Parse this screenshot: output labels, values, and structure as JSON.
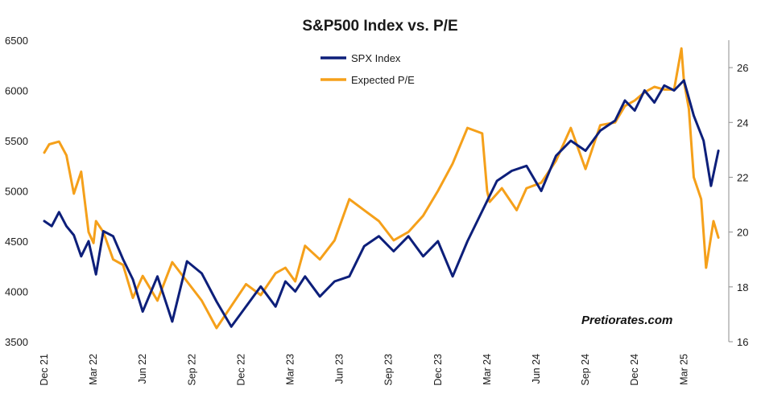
{
  "chart_data": {
    "type": "line",
    "title": "S&P500 Index vs. P/E",
    "watermark": "Pretiorates.com",
    "legend": {
      "position": "top-center",
      "entries": [
        "SPX Index",
        "Expected P/E"
      ]
    },
    "x_tick_labels": [
      "Dec 21",
      "Mar 22",
      "Jun 22",
      "Sep 22",
      "Dec 22",
      "Mar 23",
      "Jun 23",
      "Sep 23",
      "Dec 23",
      "Mar 24",
      "Jun 24",
      "Sep 24",
      "Dec 24",
      "Mar 25"
    ],
    "y_left": {
      "ylim": [
        3500,
        6500
      ],
      "ticks": [
        "3500",
        "4000",
        "4500",
        "5000",
        "5500",
        "6000",
        "6500"
      ]
    },
    "y_right": {
      "ylim": [
        16,
        27
      ],
      "ticks": [
        "16",
        "18",
        "20",
        "22",
        "24",
        "26"
      ]
    },
    "grid": false,
    "colors": {
      "spx": "#0d1f7a",
      "pe": "#f5a01a"
    },
    "series": [
      {
        "name": "SPX Index",
        "axis": "left",
        "x": [
          0,
          0.15,
          0.3,
          0.45,
          0.6,
          0.75,
          0.9,
          1.05,
          1.2,
          1.4,
          1.6,
          1.8,
          2.0,
          2.3,
          2.6,
          2.9,
          3.2,
          3.5,
          3.8,
          4.1,
          4.4,
          4.7,
          4.9,
          5.1,
          5.3,
          5.6,
          5.9,
          6.2,
          6.5,
          6.8,
          7.1,
          7.4,
          7.7,
          8.0,
          8.3,
          8.6,
          8.9,
          9.2,
          9.5,
          9.8,
          10.1,
          10.4,
          10.7,
          11.0,
          11.3,
          11.6,
          11.8,
          12.0,
          12.2,
          12.4,
          12.6,
          12.8,
          13.0,
          13.2,
          13.4,
          13.55,
          13.7
        ],
        "y": [
          4700,
          4650,
          4790,
          4650,
          4560,
          4350,
          4500,
          4170,
          4600,
          4550,
          4320,
          4120,
          3800,
          4150,
          3700,
          4300,
          4180,
          3900,
          3650,
          3850,
          4050,
          3850,
          4100,
          4000,
          4150,
          3950,
          4100,
          4150,
          4450,
          4550,
          4400,
          4550,
          4350,
          4500,
          4150,
          4500,
          4800,
          5100,
          5200,
          5250,
          5000,
          5350,
          5500,
          5400,
          5600,
          5700,
          5900,
          5800,
          6000,
          5880,
          6050,
          6000,
          6100,
          5750,
          5500,
          5050,
          5400
        ]
      },
      {
        "name": "Expected P/E",
        "axis": "right",
        "x": [
          0,
          0.1,
          0.3,
          0.45,
          0.6,
          0.75,
          0.9,
          1.0,
          1.05,
          1.2,
          1.4,
          1.6,
          1.8,
          2.0,
          2.3,
          2.6,
          2.9,
          3.2,
          3.5,
          3.8,
          4.1,
          4.4,
          4.7,
          4.9,
          5.1,
          5.3,
          5.6,
          5.9,
          6.2,
          6.5,
          6.8,
          7.1,
          7.4,
          7.7,
          8.0,
          8.3,
          8.6,
          8.9,
          9.0,
          9.05,
          9.3,
          9.6,
          9.8,
          10.1,
          10.4,
          10.7,
          11.0,
          11.3,
          11.6,
          11.8,
          12.0,
          12.2,
          12.4,
          12.6,
          12.8,
          12.95,
          13.0,
          13.1,
          13.2,
          13.35,
          13.45,
          13.6,
          13.7
        ],
        "y": [
          22.9,
          23.2,
          23.3,
          22.8,
          21.4,
          22.2,
          20.0,
          19.6,
          20.4,
          20.0,
          19.0,
          18.8,
          17.6,
          18.4,
          17.5,
          18.9,
          18.2,
          17.5,
          16.5,
          17.3,
          18.1,
          17.7,
          18.5,
          18.7,
          18.2,
          19.5,
          19.0,
          19.7,
          21.2,
          20.8,
          20.4,
          19.7,
          20.0,
          20.6,
          21.5,
          22.5,
          23.8,
          23.6,
          21.5,
          21.1,
          21.6,
          20.8,
          21.6,
          21.8,
          22.6,
          23.8,
          22.3,
          23.9,
          24.0,
          24.6,
          24.8,
          25.1,
          25.3,
          25.2,
          25.2,
          26.7,
          25.5,
          24.5,
          22.0,
          21.2,
          18.7,
          20.4,
          19.8
        ]
      }
    ]
  }
}
